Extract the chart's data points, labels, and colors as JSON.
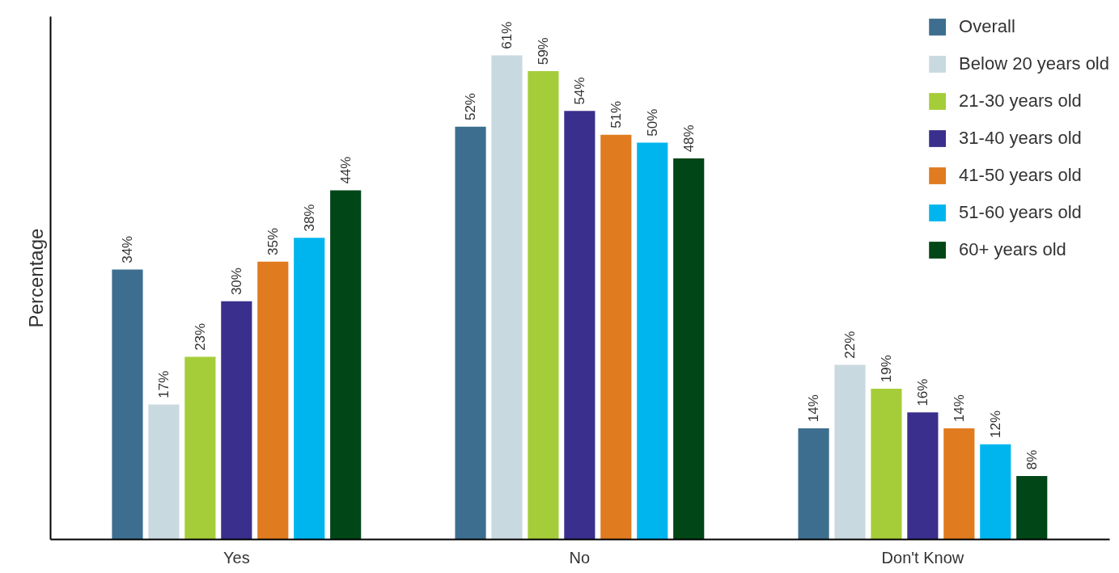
{
  "chart_data": {
    "type": "bar",
    "ylabel": "Percentage",
    "categories": [
      "Yes",
      "No",
      "Don't Know"
    ],
    "legend": "top right",
    "grid": false,
    "series": [
      {
        "name": "Overall",
        "color": "#3d6e8f",
        "values": [
          34,
          52,
          14
        ],
        "value_labels": [
          "34%",
          "52%",
          "14%"
        ]
      },
      {
        "name": "Below 20 years old",
        "color": "#c9d9e0",
        "values": [
          17,
          61,
          22
        ],
        "value_labels": [
          "17%",
          "61%",
          "22%"
        ]
      },
      {
        "name": "21-30 years old",
        "color": "#a5cd39",
        "values": [
          23,
          59,
          19
        ],
        "value_labels": [
          "23%",
          "59%",
          "19%"
        ]
      },
      {
        "name": "31-40 years old",
        "color": "#3a2f8c",
        "values": [
          30,
          54,
          16
        ],
        "value_labels": [
          "30%",
          "54%",
          "16%"
        ]
      },
      {
        "name": "41-50 years old",
        "color": "#e07b20",
        "values": [
          35,
          51,
          14
        ],
        "value_labels": [
          "35%",
          "51%",
          "14%"
        ]
      },
      {
        "name": "51-60 years old",
        "color": "#00b5ee",
        "values": [
          38,
          50,
          12
        ],
        "value_labels": [
          "38%",
          "50%",
          "12%"
        ]
      },
      {
        "name": "60+ years old",
        "color": "#004617",
        "values": [
          44,
          48,
          8
        ],
        "value_labels": [
          "44%",
          "48%",
          "8%"
        ]
      }
    ]
  }
}
